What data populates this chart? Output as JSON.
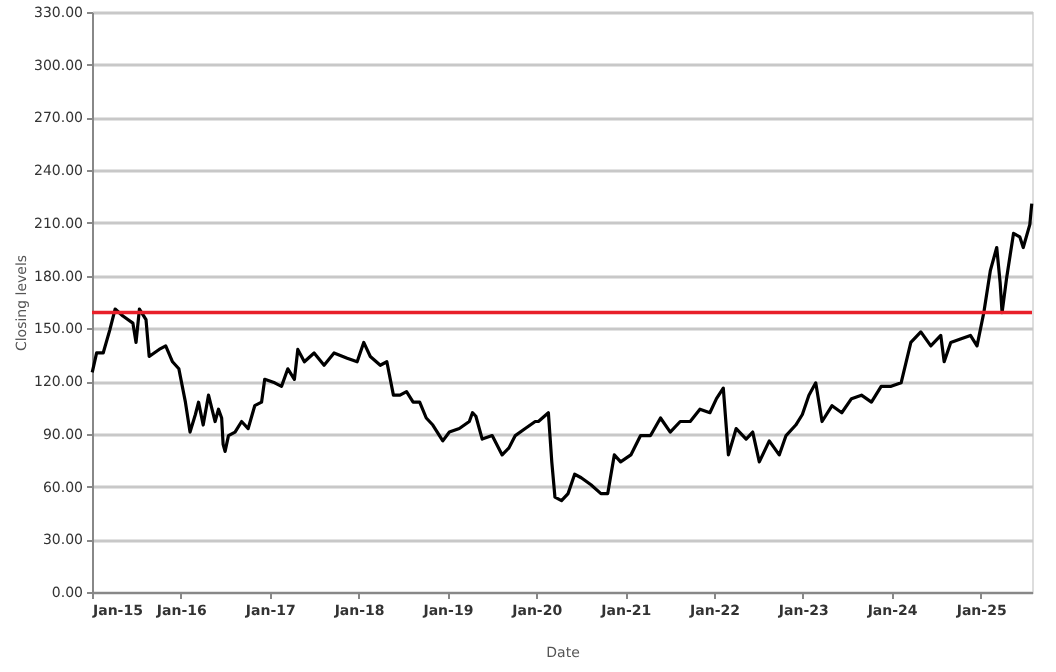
{
  "chart_data": {
    "type": "line",
    "xlabel": "Date",
    "ylabel": "Closing levels",
    "x": [
      "2015-01-02",
      "2015-01-20",
      "2015-02-16",
      "2015-03-15",
      "2015-04-06",
      "2015-05-08",
      "2015-06-18",
      "2015-07-01",
      "2015-07-15",
      "2015-08-11",
      "2015-08-24",
      "2015-10-04",
      "2015-10-31",
      "2015-11-28",
      "2015-12-24",
      "2016-01-20",
      "2016-02-08",
      "2016-03-01",
      "2016-03-14",
      "2016-04-02",
      "2016-04-24",
      "2016-05-21",
      "2016-06-04",
      "2016-06-17",
      "2016-06-23",
      "2016-07-01",
      "2016-07-15",
      "2016-08-11",
      "2016-09-07",
      "2016-10-04",
      "2016-10-31",
      "2016-11-28",
      "2016-12-11",
      "2017-01-21",
      "2017-02-18",
      "2017-03-16",
      "2017-04-12",
      "2017-04-26",
      "2017-05-23",
      "2017-07-02",
      "2017-08-12",
      "2017-09-22",
      "2017-11-15",
      "2017-12-26",
      "2018-01-22",
      "2018-02-18",
      "2018-03-31",
      "2018-04-27",
      "2018-05-24",
      "2018-06-20",
      "2018-07-17",
      "2018-08-13",
      "2018-09-09",
      "2018-10-06",
      "2018-11-02",
      "2018-12-13",
      "2019-01-09",
      "2019-02-19",
      "2019-04-01",
      "2019-04-14",
      "2019-04-28",
      "2019-05-24",
      "2019-07-04",
      "2019-08-14",
      "2019-09-11",
      "2019-10-07",
      "2019-11-17",
      "2019-12-28",
      "2020-01-10",
      "2020-02-20",
      "2020-03-05",
      "2020-03-18",
      "2020-04-14",
      "2020-05-11",
      "2020-06-07",
      "2020-07-04",
      "2020-08-13",
      "2020-09-23",
      "2020-10-21",
      "2020-11-17",
      "2020-12-13",
      "2021-01-24",
      "2021-03-05",
      "2021-04-15",
      "2021-05-26",
      "2021-07-05",
      "2021-08-15",
      "2021-09-25",
      "2021-11-04",
      "2021-12-15",
      "2022-01-11",
      "2022-02-08",
      "2022-03-01",
      "2022-04-02",
      "2022-05-13",
      "2022-06-09",
      "2022-07-06",
      "2022-08-16",
      "2022-09-26",
      "2022-10-24",
      "2022-12-03",
      "2022-12-30",
      "2023-01-26",
      "2023-02-23",
      "2023-03-21",
      "2023-05-01",
      "2023-06-10",
      "2023-07-20",
      "2023-08-30",
      "2023-10-10",
      "2023-11-19",
      "2023-12-30",
      "2024-02-09",
      "2024-03-20",
      "2024-04-30",
      "2024-06-10",
      "2024-07-21",
      "2024-08-04",
      "2024-08-31",
      "2024-10-10",
      "2024-11-20",
      "2024-12-17",
      "2025-01-14",
      "2025-02-10",
      "2025-03-08",
      "2025-03-22",
      "2025-03-30",
      "2025-04-18",
      "2025-05-16",
      "2025-06-11",
      "2025-06-25",
      "2025-07-22",
      "2025-07-30"
    ],
    "series": [
      {
        "color": "#000000",
        "values": [
          125,
          136,
          136,
          149,
          161,
          157,
          153,
          142,
          161,
          155,
          134,
          138,
          140,
          131,
          127,
          108,
          91,
          101,
          108,
          95,
          112,
          97,
          104,
          99,
          84,
          80,
          89,
          91,
          97,
          93,
          106,
          108,
          121,
          119,
          117,
          127,
          121,
          138,
          131,
          136,
          129,
          136,
          133,
          131,
          142,
          134,
          129,
          131,
          112,
          112,
          114,
          108,
          108,
          99,
          95,
          86,
          91,
          93,
          97,
          102,
          100,
          87,
          89,
          78,
          82,
          89,
          93,
          97,
          97,
          102,
          74,
          54,
          52,
          56,
          67,
          65,
          61,
          56,
          56,
          78,
          74,
          78,
          89,
          89,
          99,
          91,
          97,
          97,
          104,
          102,
          110,
          116,
          78,
          93,
          87,
          91,
          74,
          86,
          78,
          89,
          95,
          101,
          112,
          119,
          97,
          106,
          102,
          110,
          112,
          108,
          117,
          117,
          119,
          142,
          148,
          140,
          146,
          131,
          142,
          144,
          146,
          140,
          159,
          183,
          196,
          176,
          159,
          179,
          204,
          202,
          196,
          209,
          221
        ]
      }
    ],
    "xlim": [
      "2015-01-01",
      "2025-07-31"
    ],
    "xticks": [
      {
        "value": "2015-01-01",
        "label": "Jan-15"
      },
      {
        "value": "2016-01-01",
        "label": "Jan-16"
      },
      {
        "value": "2017-01-01",
        "label": "Jan-17"
      },
      {
        "value": "2018-01-01",
        "label": "Jan-18"
      },
      {
        "value": "2019-01-01",
        "label": "Jan-19"
      },
      {
        "value": "2020-01-01",
        "label": "Jan-20"
      },
      {
        "value": "2021-01-01",
        "label": "Jan-21"
      },
      {
        "value": "2022-01-01",
        "label": "Jan-22"
      },
      {
        "value": "2023-01-01",
        "label": "Jan-23"
      },
      {
        "value": "2024-01-01",
        "label": "Jan-24"
      },
      {
        "value": "2025-01-01",
        "label": "Jan-25"
      }
    ],
    "ylim": [
      0,
      330
    ],
    "yticks": [
      {
        "value": 0,
        "label": "0.00"
      },
      {
        "value": 30,
        "label": "30.00"
      },
      {
        "value": 60,
        "label": "60.00"
      },
      {
        "value": 90,
        "label": "90.00"
      },
      {
        "value": 120,
        "label": "120.00"
      },
      {
        "value": 150,
        "label": "150.00"
      },
      {
        "value": 180,
        "label": "180.00"
      },
      {
        "value": 210,
        "label": "210.00"
      },
      {
        "value": 240,
        "label": "240.00"
      },
      {
        "value": 270,
        "label": "270.00"
      },
      {
        "value": 300,
        "label": "300.00"
      },
      {
        "value": 330,
        "label": "330.00"
      }
    ],
    "grid": "y",
    "marker": "none",
    "line_style": "solid",
    "ref_lines": [
      {
        "axis": "y",
        "value": 159,
        "color": "#e8202a"
      }
    ]
  }
}
